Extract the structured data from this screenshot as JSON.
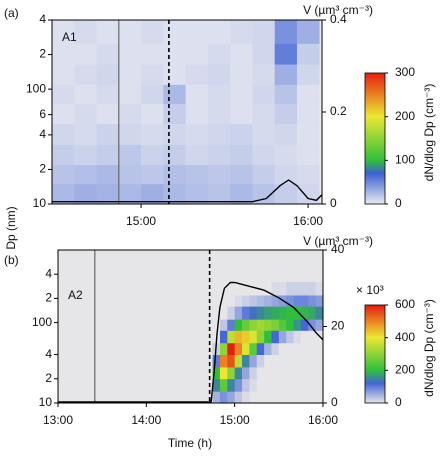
{
  "chart_data": [
    {
      "type": "heatmap",
      "panel_label": "(a)",
      "annotation": "A1",
      "ylabel": "Dp (nm)",
      "x_edges": [
        868,
        876,
        884,
        892,
        900,
        908,
        916,
        924,
        932,
        940,
        948,
        956,
        964
      ],
      "y_edges": [
        10,
        15,
        22,
        33,
        50,
        75,
        110,
        165,
        250,
        400
      ],
      "z": [
        [
          25,
          30,
          28,
          25,
          30,
          25,
          22,
          20,
          25,
          20,
          15,
          10
        ],
        [
          20,
          22,
          25,
          20,
          18,
          22,
          20,
          18,
          20,
          15,
          10,
          8
        ],
        [
          15,
          12,
          15,
          18,
          12,
          15,
          10,
          12,
          15,
          10,
          8,
          5
        ],
        [
          10,
          8,
          12,
          10,
          8,
          10,
          8,
          10,
          12,
          8,
          10,
          5
        ],
        [
          5,
          8,
          5,
          8,
          5,
          15,
          5,
          8,
          5,
          8,
          15,
          5
        ],
        [
          8,
          5,
          8,
          5,
          10,
          25,
          5,
          8,
          5,
          10,
          20,
          5
        ],
        [
          5,
          8,
          10,
          5,
          8,
          5,
          8,
          10,
          5,
          8,
          30,
          10
        ],
        [
          5,
          5,
          8,
          5,
          5,
          5,
          5,
          8,
          5,
          10,
          55,
          15
        ],
        [
          5,
          8,
          5,
          5,
          8,
          5,
          5,
          5,
          8,
          10,
          45,
          30
        ]
      ],
      "xlim": [
        868,
        965
      ],
      "xticks": [
        {
          "value": 900,
          "label": "15:00"
        },
        {
          "value": 960,
          "label": "16:00"
        }
      ],
      "ylim": [
        10,
        400
      ],
      "ylog": true,
      "yticks": [
        10,
        {
          "value": 20,
          "label": "2"
        },
        {
          "value": 40,
          "label": "4"
        },
        {
          "value": 60,
          "label": "6"
        },
        100,
        {
          "value": 200,
          "label": "2"
        },
        {
          "value": 400,
          "label": "4"
        }
      ],
      "y2label": "V (µm³ cm⁻³)",
      "y2lim": [
        0,
        0.4
      ],
      "y2ticks": [
        0,
        0.2,
        0.4
      ],
      "series": [
        {
          "color": "#000000",
          "axis": "y2",
          "x": [
            868,
            940,
            945,
            950,
            953,
            956,
            960,
            963,
            965
          ],
          "values": [
            0.005,
            0.005,
            0.012,
            0.04,
            0.052,
            0.04,
            0.012,
            0.008,
            0.02
          ]
        }
      ],
      "vlines": [
        {
          "x": 892,
          "style": "solid"
        },
        {
          "x": 910,
          "style": "dashed"
        }
      ],
      "colorscale": [
        [
          0,
          "#e9ebf1"
        ],
        [
          70,
          "#3c60d2"
        ],
        [
          100,
          "#2fbf3c"
        ],
        [
          200,
          "#ece832"
        ],
        [
          300,
          "#e61e12"
        ]
      ],
      "colorbar_lim": [
        0,
        300
      ],
      "colorbar_ticks": [
        0,
        100,
        200,
        300
      ],
      "colorbar_label": "dN/dlog Dp (cm⁻³)"
    },
    {
      "type": "heatmap",
      "panel_label": "(b)",
      "annotation": "A2",
      "xlabel": "Time (h)",
      "x_edges": [
        780,
        885,
        890,
        895,
        900,
        905,
        910,
        915,
        920,
        925,
        930,
        935,
        940,
        945,
        950,
        955,
        960
      ],
      "y_edges": [
        10,
        14,
        20,
        28,
        40,
        56,
        80,
        110,
        160,
        220,
        320
      ],
      "z": [
        [
          0,
          50,
          80,
          60,
          30,
          10,
          0,
          0,
          0,
          0,
          0,
          0,
          0,
          0,
          0,
          0
        ],
        [
          0,
          150,
          250,
          150,
          80,
          30,
          10,
          0,
          0,
          0,
          0,
          0,
          0,
          0,
          0,
          0
        ],
        [
          0,
          200,
          400,
          300,
          150,
          60,
          20,
          0,
          0,
          0,
          0,
          0,
          0,
          0,
          0,
          0
        ],
        [
          0,
          100,
          500,
          550,
          350,
          150,
          60,
          20,
          0,
          0,
          0,
          0,
          0,
          0,
          0,
          0
        ],
        [
          0,
          20,
          300,
          650,
          500,
          380,
          250,
          120,
          50,
          20,
          0,
          0,
          0,
          0,
          0,
          0
        ],
        [
          0,
          0,
          120,
          350,
          450,
          430,
          380,
          300,
          200,
          120,
          60,
          30,
          10,
          0,
          0,
          0
        ],
        [
          0,
          0,
          30,
          100,
          200,
          260,
          300,
          320,
          300,
          280,
          240,
          200,
          160,
          120,
          80,
          60
        ],
        [
          0,
          0,
          0,
          20,
          60,
          100,
          130,
          150,
          170,
          180,
          190,
          200,
          200,
          190,
          180,
          150
        ],
        [
          0,
          0,
          0,
          0,
          10,
          20,
          30,
          40,
          50,
          60,
          70,
          80,
          90,
          90,
          80,
          70
        ],
        [
          0,
          0,
          0,
          0,
          0,
          0,
          0,
          0,
          0,
          10,
          10,
          20,
          20,
          20,
          20,
          10
        ]
      ],
      "xlim": [
        780,
        960
      ],
      "xticks": [
        {
          "value": 780,
          "label": "13:00"
        },
        {
          "value": 840,
          "label": "14:00"
        },
        {
          "value": 900,
          "label": "15:00"
        },
        {
          "value": 960,
          "label": "16:00"
        }
      ],
      "ylim": [
        10,
        800
      ],
      "ylog": true,
      "yticks": [
        10,
        {
          "value": 20,
          "label": "2"
        },
        {
          "value": 40,
          "label": "4"
        },
        100,
        {
          "value": 200,
          "label": "2"
        },
        {
          "value": 400,
          "label": "4"
        }
      ],
      "y2label": "V (µm³ cm⁻³)",
      "y2lim": [
        0,
        40
      ],
      "y2ticks": [
        0,
        20,
        40
      ],
      "series": [
        {
          "color": "#000000",
          "axis": "y2",
          "x": [
            780,
            884,
            886,
            888,
            890,
            893,
            897,
            900,
            910,
            920,
            930,
            940,
            950,
            955,
            960
          ],
          "values": [
            0.3,
            0.3,
            8,
            18,
            25,
            30,
            31.5,
            31.5,
            30.5,
            29.5,
            27.5,
            25,
            21,
            18.5,
            16.5
          ]
        }
      ],
      "vlines": [
        {
          "x": 805,
          "style": "solid"
        },
        {
          "x": 883,
          "style": "dashed"
        }
      ],
      "colorscale": [
        [
          0,
          "#e6e6e8"
        ],
        [
          120,
          "#4466d6"
        ],
        [
          200,
          "#2fbf3c"
        ],
        [
          400,
          "#ece832"
        ],
        [
          600,
          "#e61e12"
        ]
      ],
      "colorbar_lim": [
        0,
        600
      ],
      "colorbar_ticks": [
        0,
        200,
        400,
        600
      ],
      "colorbar_multiplier": "× 10³",
      "colorbar_label": "dN/dlog Dp (cm⁻³)"
    }
  ]
}
